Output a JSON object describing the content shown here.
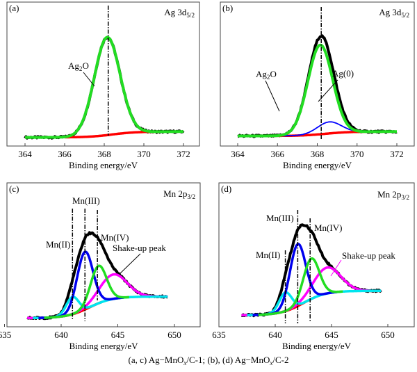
{
  "caption": {
    "prefix": "(a, c) Ag−MnO",
    "sub1": "x",
    "mid": "/C-1; (b), (d) Ag−MnO",
    "sub2": "x",
    "suffix": "/C-2"
  },
  "chart_data": [
    {
      "panel": "(a)",
      "type": "line",
      "title": "Ag 3d",
      "title_sub": "5/2",
      "xlabel": "Binding energy/eV",
      "xlim": [
        363,
        373
      ],
      "xticks": [
        364,
        366,
        368,
        370,
        372
      ],
      "y_axis_ticks": false,
      "background": {
        "color": "#ff0000",
        "start": 0.06,
        "end": 0.1,
        "range": [
          366,
          370.8
        ]
      },
      "components": [
        {
          "label": "Ag₂O",
          "center": 368.15,
          "amplitude": 0.68,
          "sigma": 0.65,
          "color": "#22dd22",
          "range": [
            364,
            372
          ]
        }
      ],
      "envelope": {
        "color": "#000000",
        "range": [
          364,
          372
        ]
      },
      "reference_lines": [
        368.2
      ],
      "annotations": [
        {
          "text": "Ag",
          "sub": "2",
          "text2": "O"
        }
      ]
    },
    {
      "panel": "(b)",
      "type": "line",
      "title": "Ag 3d",
      "title_sub": "5/2",
      "xlabel": "Binding energy/eV",
      "xlim": [
        363,
        373
      ],
      "xticks": [
        364,
        366,
        368,
        370,
        372
      ],
      "y_axis_ticks": false,
      "background": {
        "color": "#ff0000",
        "start": 0.07,
        "end": 0.1,
        "range": [
          364.2,
          371.8
        ]
      },
      "components": [
        {
          "label": "Ag₂O",
          "center": 368.15,
          "amplitude": 0.62,
          "sigma": 0.62,
          "color": "#22dd22",
          "range": [
            364,
            372
          ]
        },
        {
          "label": "Ag(0)",
          "center": 368.6,
          "amplitude": 0.08,
          "sigma": 0.6,
          "color": "#0000ff",
          "range": [
            364.2,
            371.8
          ]
        }
      ],
      "envelope": {
        "color": "#000000",
        "range": [
          364,
          372
        ]
      },
      "reference_lines": [
        368.2
      ],
      "annotations": [
        {
          "text": "Ag",
          "sub": "2",
          "text2": "O"
        },
        {
          "text": "Ag(0)"
        }
      ]
    },
    {
      "panel": "(c)",
      "type": "line",
      "title": "Mn 2p",
      "title_sub": "3/2",
      "xlabel": "Binding energy/eV",
      "xlim": [
        635,
        652
      ],
      "xticks": [
        635,
        640,
        645,
        650
      ],
      "y_axis_ticks": false,
      "background": {
        "color": "#ff0000",
        "start": 0.06,
        "end": 0.21,
        "range": [
          640,
          643.6
        ]
      },
      "components": [
        {
          "label": "Mn(II)",
          "center": 641.0,
          "amplitude": 0.12,
          "sigma": 0.55,
          "color": "#00e5ee",
          "range": [
            637.5,
            649.4
          ]
        },
        {
          "label": "Mn(III)",
          "center": 642.1,
          "amplitude": 0.4,
          "sigma": 0.7,
          "color": "#0000ee",
          "range": [
            638,
            645.5
          ]
        },
        {
          "label": "Mn(IV)",
          "center": 643.3,
          "amplitude": 0.26,
          "sigma": 0.7,
          "color": "#22dd22",
          "range": [
            638.5,
            646
          ]
        },
        {
          "label": "Shake-up peak",
          "center": 644.6,
          "amplitude": 0.17,
          "sigma": 1.2,
          "color": "#ff00ff",
          "range": [
            637,
            649.4
          ]
        }
      ],
      "envelope": {
        "color": "#000000",
        "range": [
          637,
          649.4
        ]
      },
      "reference_lines": [
        641.0,
        642.1,
        643.2
      ]
    },
    {
      "panel": "(d)",
      "type": "line",
      "title": "Mn 2p",
      "title_sub": "3/2",
      "xlabel": "Binding energy/eV",
      "xlim": [
        635,
        652
      ],
      "xticks": [
        635,
        640,
        645,
        650
      ],
      "y_axis_ticks": false,
      "background": {
        "color": "#ff0000",
        "start": 0.08,
        "end": 0.25,
        "range": [
          640,
          643.6
        ]
      },
      "components": [
        {
          "label": "Mn(II)",
          "center": 640.9,
          "amplitude": 0.13,
          "sigma": 0.55,
          "color": "#00e5ee",
          "range": [
            637.5,
            649.4
          ]
        },
        {
          "label": "Mn(III)",
          "center": 642.0,
          "amplitude": 0.43,
          "sigma": 0.7,
          "color": "#0000ee",
          "range": [
            638,
            645.5
          ]
        },
        {
          "label": "Mn(IV)",
          "center": 643.2,
          "amplitude": 0.28,
          "sigma": 0.7,
          "color": "#22dd22",
          "range": [
            638.5,
            646
          ]
        },
        {
          "label": "Shake-up peak",
          "center": 644.6,
          "amplitude": 0.18,
          "sigma": 1.2,
          "color": "#ff00ff",
          "range": [
            637,
            649.4
          ]
        }
      ],
      "envelope": {
        "color": "#000000",
        "range": [
          637,
          649.4
        ]
      },
      "reference_lines": [
        640.9,
        642.0,
        643.1
      ]
    }
  ]
}
